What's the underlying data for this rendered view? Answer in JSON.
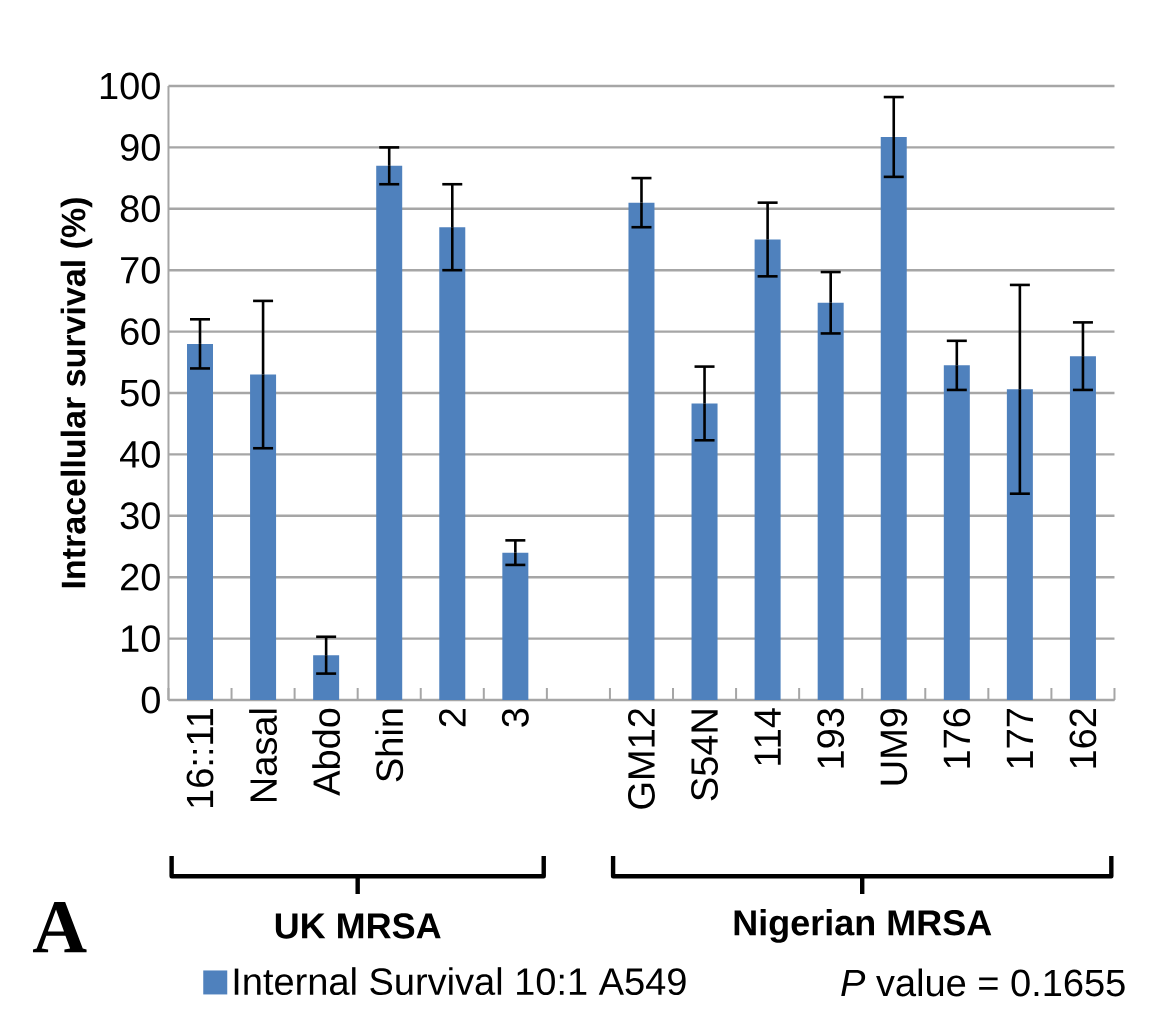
{
  "chart_data": {
    "type": "bar",
    "ylabel": "Intracellular survival (%)",
    "categories": [
      "16::11",
      "Nasal",
      "Abdo",
      "Shin",
      "2",
      "3",
      null,
      "GM12",
      "S54N",
      "114",
      "193",
      "UM9",
      "176",
      "177",
      "162"
    ],
    "series": [
      {
        "name": "Internal Survival 10:1 A549",
        "color": "#4f81bd",
        "values": [
          58,
          53,
          7.3,
          87,
          77,
          24,
          null,
          81,
          48.3,
          75,
          64.7,
          91.7,
          54.5,
          50.6,
          56
        ],
        "errors": [
          4,
          12,
          3,
          3,
          7,
          2,
          null,
          4,
          6,
          6,
          5,
          6.5,
          4,
          17,
          5.5
        ]
      }
    ],
    "ylim": [
      0,
      100
    ],
    "yticks": [
      0,
      10,
      20,
      30,
      40,
      50,
      60,
      70,
      80,
      90,
      100
    ],
    "grid": "y",
    "legend": "bottom",
    "annotations": [
      "UK MRSA",
      "Nigerian MRSA",
      "A",
      "*P* value = 0.1655"
    ]
  }
}
